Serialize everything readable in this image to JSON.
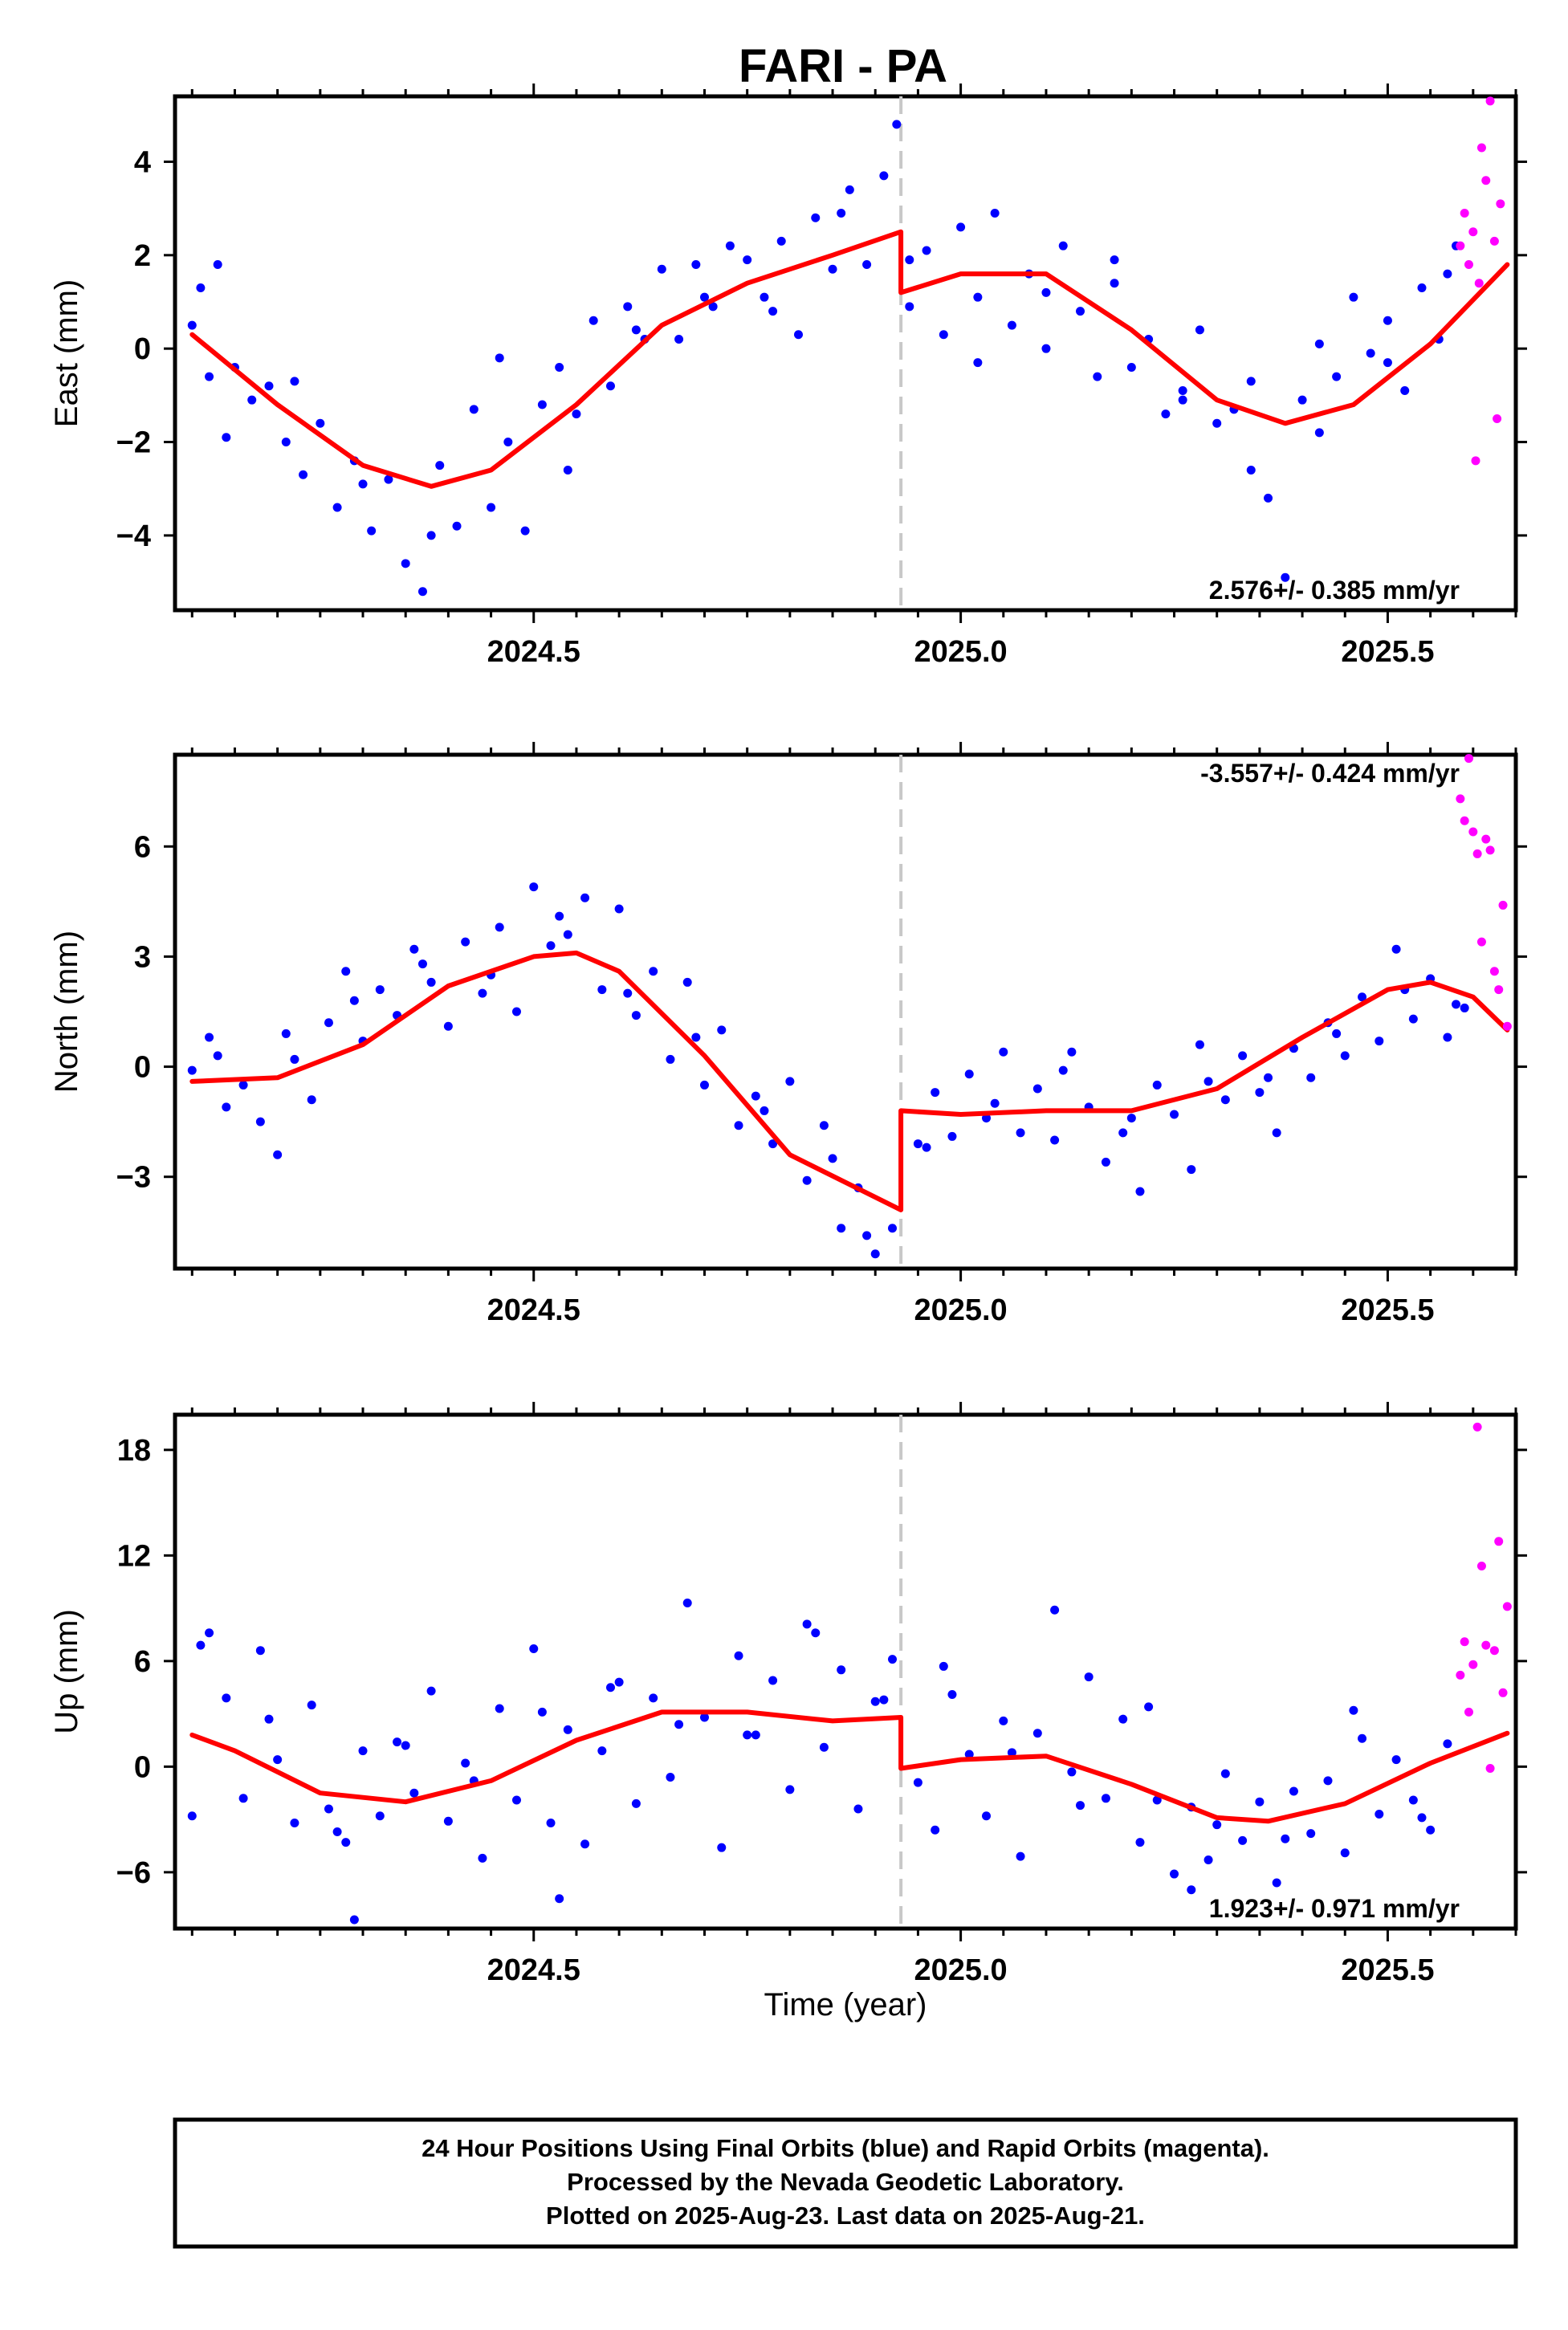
{
  "chart_data": {
    "type": "scatter",
    "title": "FARI - PA",
    "xlabel": "Time (year)",
    "xlim": [
      2024.08,
      2025.65
    ],
    "x_ticks": [
      "2024.5",
      "2025.0",
      "2025.5"
    ],
    "break_epoch": 2024.93,
    "colors": {
      "final": "#0000ff",
      "rapid": "#ff00ff",
      "model": "#ff0000",
      "break_line": "#c8c8c8"
    },
    "panels": [
      {
        "name": "East",
        "ylabel": "East (mm)",
        "ylim": [
          -5.6,
          5.4
        ],
        "y_ticks": [
          "4",
          "2",
          "0",
          "−2",
          "−4"
        ],
        "y_tick_values": [
          4,
          2,
          0,
          -2,
          -4
        ],
        "rate_text": "2.576+/- 0.385 mm/yr",
        "rate_position": "bottom-right",
        "model": {
          "x": [
            2024.1,
            2024.2,
            2024.3,
            2024.38,
            2024.45,
            2024.55,
            2024.65,
            2024.75,
            2024.85,
            2024.93,
            2024.93,
            2025.0,
            2025.1,
            2025.2,
            2025.3,
            2025.38,
            2025.46,
            2025.55,
            2025.64
          ],
          "y": [
            0.3,
            -1.2,
            -2.5,
            -2.95,
            -2.6,
            -1.2,
            0.5,
            1.4,
            2.0,
            2.5,
            1.2,
            1.6,
            1.6,
            0.4,
            -1.1,
            -1.6,
            -1.2,
            0.1,
            1.8
          ]
        },
        "rapid_points": {
          "x": [
            2025.585,
            2025.59,
            2025.595,
            2025.6,
            2025.603,
            2025.607,
            2025.61,
            2025.615,
            2025.62,
            2025.625,
            2025.628,
            2025.632
          ],
          "y": [
            2.2,
            2.9,
            1.8,
            2.5,
            -2.4,
            1.4,
            4.3,
            3.6,
            5.3,
            2.3,
            -1.5,
            3.1
          ]
        },
        "final_points": {
          "x": [
            2024.1,
            2024.11,
            2024.12,
            2024.13,
            2024.15,
            2024.17,
            2024.19,
            2024.21,
            2024.23,
            2024.25,
            2024.27,
            2024.29,
            2024.31,
            2024.33,
            2024.35,
            2024.37,
            2024.39,
            2024.41,
            2024.43,
            2024.45,
            2024.47,
            2024.49,
            2024.51,
            2024.53,
            2024.55,
            2024.57,
            2024.59,
            2024.61,
            2024.63,
            2024.65,
            2024.67,
            2024.69,
            2024.71,
            2024.73,
            2024.75,
            2024.77,
            2024.79,
            2024.81,
            2024.83,
            2024.85,
            2024.87,
            2024.89,
            2024.91,
            2024.925,
            2024.94,
            2024.96,
            2024.98,
            2025.0,
            2025.02,
            2025.04,
            2025.06,
            2025.08,
            2025.1,
            2025.12,
            2025.14,
            2025.16,
            2025.18,
            2025.2,
            2025.22,
            2025.24,
            2025.26,
            2025.28,
            2025.3,
            2025.32,
            2025.34,
            2025.36,
            2025.38,
            2025.4,
            2025.42,
            2025.44,
            2025.46,
            2025.48,
            2025.5,
            2025.52,
            2025.54,
            2025.56,
            2025.58,
            2024.14,
            2024.22,
            2024.3,
            2024.38,
            2024.46,
            2024.54,
            2024.62,
            2024.7,
            2024.78,
            2024.86,
            2024.94,
            2025.02,
            2025.1,
            2025.18,
            2025.26,
            2025.34,
            2025.42,
            2025.5,
            2025.57
          ],
          "y": [
            0.5,
            1.3,
            -0.6,
            1.8,
            -0.4,
            -1.1,
            -0.8,
            -2.0,
            -2.7,
            -1.6,
            -3.4,
            -2.4,
            -3.9,
            -2.8,
            -4.6,
            -5.2,
            -2.5,
            -3.8,
            -1.3,
            -3.4,
            -2.0,
            -3.9,
            -1.2,
            -0.4,
            -1.4,
            0.6,
            -0.8,
            0.9,
            0.2,
            1.7,
            0.2,
            1.8,
            0.9,
            2.2,
            1.9,
            1.1,
            2.3,
            0.3,
            2.8,
            1.7,
            3.4,
            1.8,
            3.7,
            4.8,
            0.9,
            2.1,
            0.3,
            2.6,
            1.1,
            2.9,
            0.5,
            1.6,
            0.0,
            2.2,
            0.8,
            -0.6,
            1.4,
            -0.4,
            0.2,
            -1.4,
            -0.9,
            0.4,
            -1.6,
            -1.3,
            -2.6,
            -3.2,
            -4.9,
            -1.1,
            0.1,
            -0.6,
            1.1,
            -0.1,
            0.6,
            -0.9,
            1.3,
            0.2,
            2.2,
            -1.9,
            -0.7,
            -2.9,
            -4.0,
            -0.2,
            -2.6,
            0.4,
            1.1,
            0.8,
            2.9,
            1.9,
            -0.3,
            1.2,
            1.9,
            -1.1,
            -0.7,
            -1.8,
            -0.3,
            1.6
          ]
        }
      },
      {
        "name": "North",
        "ylabel": "North (mm)",
        "ylim": [
          -5.5,
          8.5
        ],
        "y_ticks": [
          "6",
          "3",
          "0",
          "−3"
        ],
        "y_tick_values": [
          6,
          3,
          0,
          -3
        ],
        "rate_text": "-3.557+/- 0.424 mm/yr",
        "rate_position": "top-right",
        "model": {
          "x": [
            2024.1,
            2024.2,
            2024.3,
            2024.4,
            2024.5,
            2024.55,
            2024.6,
            2024.7,
            2024.8,
            2024.93,
            2024.93,
            2025.0,
            2025.1,
            2025.2,
            2025.3,
            2025.4,
            2025.5,
            2025.55,
            2025.6,
            2025.64
          ],
          "y": [
            -0.4,
            -0.3,
            0.6,
            2.2,
            3.0,
            3.1,
            2.6,
            0.3,
            -2.4,
            -3.9,
            -1.2,
            -1.3,
            -1.2,
            -1.2,
            -0.6,
            0.8,
            2.1,
            2.3,
            1.9,
            1.0
          ]
        },
        "rapid_points": {
          "x": [
            2025.585,
            2025.59,
            2025.595,
            2025.6,
            2025.605,
            2025.61,
            2025.615,
            2025.62,
            2025.625,
            2025.63,
            2025.635,
            2025.64
          ],
          "y": [
            7.3,
            6.7,
            8.4,
            6.4,
            5.8,
            3.4,
            6.2,
            5.9,
            2.6,
            2.1,
            4.4,
            1.1
          ]
        },
        "final_points": {
          "x": [
            2024.1,
            2024.12,
            2024.14,
            2024.16,
            2024.18,
            2024.2,
            2024.22,
            2024.24,
            2024.26,
            2024.28,
            2024.3,
            2024.32,
            2024.34,
            2024.36,
            2024.38,
            2024.4,
            2024.42,
            2024.44,
            2024.46,
            2024.48,
            2024.5,
            2024.52,
            2024.54,
            2024.56,
            2024.58,
            2024.6,
            2024.62,
            2024.64,
            2024.66,
            2024.68,
            2024.7,
            2024.72,
            2024.74,
            2024.76,
            2024.78,
            2024.8,
            2024.82,
            2024.84,
            2024.86,
            2024.88,
            2024.9,
            2024.92,
            2024.95,
            2024.97,
            2024.99,
            2025.01,
            2025.03,
            2025.05,
            2025.07,
            2025.09,
            2025.11,
            2025.13,
            2025.15,
            2025.17,
            2025.19,
            2025.21,
            2025.23,
            2025.25,
            2025.27,
            2025.29,
            2025.31,
            2025.33,
            2025.35,
            2025.37,
            2025.39,
            2025.41,
            2025.43,
            2025.45,
            2025.47,
            2025.49,
            2025.51,
            2025.53,
            2025.55,
            2025.57,
            2025.59,
            2024.13,
            2024.21,
            2024.29,
            2024.37,
            2024.45,
            2024.53,
            2024.61,
            2024.69,
            2024.77,
            2024.85,
            2024.89,
            2024.96,
            2025.04,
            2025.12,
            2025.2,
            2025.28,
            2025.36,
            2025.44,
            2025.52,
            2025.58
          ],
          "y": [
            -0.1,
            0.8,
            -1.1,
            -0.5,
            -1.5,
            -2.4,
            0.2,
            -0.9,
            1.2,
            2.6,
            0.7,
            2.1,
            1.4,
            3.2,
            2.3,
            1.1,
            3.4,
            2.0,
            3.8,
            1.5,
            4.9,
            3.3,
            3.6,
            4.6,
            2.1,
            4.3,
            1.4,
            2.6,
            0.2,
            2.3,
            -0.5,
            1.0,
            -1.6,
            -0.8,
            -2.1,
            -0.4,
            -3.1,
            -1.6,
            -4.4,
            -3.3,
            -5.1,
            -4.4,
            -2.1,
            -0.7,
            -1.9,
            -0.2,
            -1.4,
            0.4,
            -1.8,
            -0.6,
            -2.0,
            0.4,
            -1.1,
            -2.6,
            -1.8,
            -3.4,
            -0.5,
            -1.3,
            -2.8,
            -0.4,
            -0.9,
            0.3,
            -0.7,
            -1.8,
            0.5,
            -0.3,
            1.2,
            0.3,
            1.9,
            0.7,
            3.2,
            1.3,
            2.4,
            0.8,
            1.6,
            0.3,
            0.9,
            1.8,
            2.8,
            2.5,
            4.1,
            2.0,
            0.8,
            -1.2,
            -2.5,
            -4.6,
            -2.2,
            -1.0,
            -0.1,
            -1.4,
            0.6,
            -0.3,
            0.9,
            2.1,
            1.7
          ]
        }
      },
      {
        "name": "Up",
        "ylabel": "Up (mm)",
        "ylim": [
          -9.2,
          20.0
        ],
        "y_ticks": [
          "18",
          "12",
          "6",
          "0",
          "−6"
        ],
        "y_tick_values": [
          18,
          12,
          6,
          0,
          -6
        ],
        "rate_text": "1.923+/- 0.971 mm/yr",
        "rate_position": "bottom-right",
        "model": {
          "x": [
            2024.1,
            2024.15,
            2024.25,
            2024.35,
            2024.45,
            2024.55,
            2024.65,
            2024.75,
            2024.85,
            2024.93,
            2024.93,
            2025.0,
            2025.1,
            2025.2,
            2025.3,
            2025.36,
            2025.45,
            2025.55,
            2025.64
          ],
          "y": [
            1.8,
            0.9,
            -1.5,
            -2.0,
            -0.8,
            1.5,
            3.1,
            3.1,
            2.6,
            2.8,
            -0.1,
            0.4,
            0.6,
            -1.0,
            -2.9,
            -3.1,
            -2.1,
            0.2,
            1.9
          ]
        },
        "rapid_points": {
          "x": [
            2025.585,
            2025.59,
            2025.595,
            2025.6,
            2025.605,
            2025.61,
            2025.615,
            2025.62,
            2025.625,
            2025.63,
            2025.635,
            2025.64
          ],
          "y": [
            5.2,
            7.1,
            3.1,
            5.8,
            19.3,
            11.4,
            6.9,
            -0.1,
            6.6,
            12.8,
            4.2,
            9.1
          ]
        },
        "final_points": {
          "x": [
            2024.1,
            2024.12,
            2024.14,
            2024.16,
            2024.18,
            2024.2,
            2024.22,
            2024.24,
            2024.26,
            2024.28,
            2024.3,
            2024.32,
            2024.34,
            2024.36,
            2024.38,
            2024.4,
            2024.42,
            2024.44,
            2024.46,
            2024.48,
            2024.5,
            2024.52,
            2024.54,
            2024.56,
            2024.58,
            2024.6,
            2024.62,
            2024.64,
            2024.66,
            2024.68,
            2024.7,
            2024.72,
            2024.74,
            2024.76,
            2024.78,
            2024.8,
            2024.82,
            2024.84,
            2024.86,
            2024.88,
            2024.9,
            2024.92,
            2024.95,
            2024.97,
            2024.99,
            2025.01,
            2025.03,
            2025.05,
            2025.07,
            2025.09,
            2025.11,
            2025.13,
            2025.15,
            2025.17,
            2025.19,
            2025.21,
            2025.23,
            2025.25,
            2025.27,
            2025.29,
            2025.31,
            2025.33,
            2025.35,
            2025.37,
            2025.39,
            2025.41,
            2025.43,
            2025.45,
            2025.47,
            2025.49,
            2025.51,
            2025.53,
            2025.55,
            2025.57,
            2024.11,
            2024.19,
            2024.27,
            2024.35,
            2024.43,
            2024.51,
            2024.59,
            2024.67,
            2024.75,
            2024.83,
            2024.91,
            2024.98,
            2025.06,
            2025.14,
            2025.22,
            2025.3,
            2025.38,
            2025.46,
            2025.54,
            2024.29,
            2024.53,
            2025.27
          ],
          "y": [
            -2.8,
            7.6,
            3.9,
            -1.8,
            6.6,
            0.4,
            -3.2,
            3.5,
            -2.4,
            -4.3,
            0.9,
            -2.8,
            1.4,
            -1.5,
            4.3,
            -3.1,
            0.2,
            -5.2,
            3.3,
            -1.9,
            6.7,
            -3.2,
            2.1,
            -4.4,
            0.9,
            4.8,
            -2.1,
            3.9,
            -0.6,
            9.3,
            2.8,
            -4.6,
            6.3,
            1.8,
            4.9,
            -1.3,
            8.1,
            1.1,
            5.5,
            -2.4,
            3.7,
            6.1,
            -0.9,
            -3.6,
            4.1,
            0.7,
            -2.8,
            2.6,
            -5.1,
            1.9,
            8.9,
            -0.3,
            5.1,
            -1.8,
            2.7,
            -4.3,
            -1.9,
            -6.1,
            -2.3,
            -5.3,
            -0.4,
            -4.2,
            -2.0,
            -6.6,
            -1.4,
            -3.8,
            -0.8,
            -4.9,
            1.6,
            -2.7,
            0.4,
            -1.9,
            -3.6,
            1.3,
            6.9,
            2.7,
            -3.7,
            1.2,
            -0.8,
            3.1,
            4.5,
            2.4,
            1.8,
            7.6,
            3.8,
            5.7,
            0.8,
            -2.2,
            3.4,
            -3.3,
            -4.1,
            3.2,
            -2.9,
            -8.7,
            -7.5,
            -7.0
          ]
        }
      }
    ],
    "footer": [
      "24 Hour Positions Using Final Orbits (blue) and Rapid Orbits (magenta).",
      "Processed by the Nevada Geodetic Laboratory.",
      "Plotted on 2025-Aug-23. Last data on 2025-Aug-21."
    ]
  }
}
